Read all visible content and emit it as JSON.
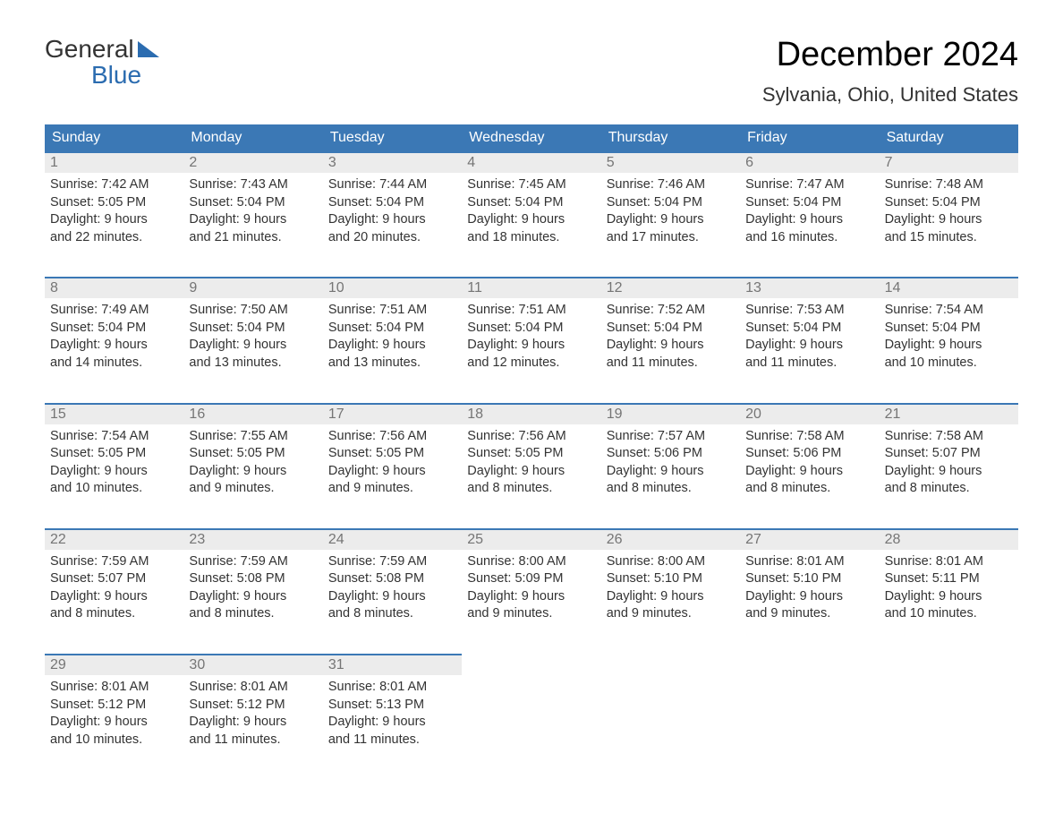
{
  "logo": {
    "line1": "General",
    "line2": "Blue"
  },
  "title": "December 2024",
  "location": "Sylvania, Ohio, United States",
  "colors": {
    "header_bg": "#3b78b5",
    "header_fg": "#ffffff",
    "cell_border": "#3b78b5",
    "daynum_bg": "#ececec",
    "daynum_fg": "#757575",
    "body_fg": "#333333",
    "logo_accent": "#2b6cb0",
    "page_bg": "#ffffff"
  },
  "typography": {
    "title_fontsize": 38,
    "location_fontsize": 22,
    "dow_fontsize": 16,
    "daynum_fontsize": 16,
    "body_fontsize": 14.5,
    "font_family": "Arial"
  },
  "calendar": {
    "type": "table",
    "dow": [
      "Sunday",
      "Monday",
      "Tuesday",
      "Wednesday",
      "Thursday",
      "Friday",
      "Saturday"
    ],
    "weeks": [
      [
        {
          "day": "1",
          "sunrise": "Sunrise: 7:42 AM",
          "sunset": "Sunset: 5:05 PM",
          "dl1": "Daylight: 9 hours",
          "dl2": "and 22 minutes."
        },
        {
          "day": "2",
          "sunrise": "Sunrise: 7:43 AM",
          "sunset": "Sunset: 5:04 PM",
          "dl1": "Daylight: 9 hours",
          "dl2": "and 21 minutes."
        },
        {
          "day": "3",
          "sunrise": "Sunrise: 7:44 AM",
          "sunset": "Sunset: 5:04 PM",
          "dl1": "Daylight: 9 hours",
          "dl2": "and 20 minutes."
        },
        {
          "day": "4",
          "sunrise": "Sunrise: 7:45 AM",
          "sunset": "Sunset: 5:04 PM",
          "dl1": "Daylight: 9 hours",
          "dl2": "and 18 minutes."
        },
        {
          "day": "5",
          "sunrise": "Sunrise: 7:46 AM",
          "sunset": "Sunset: 5:04 PM",
          "dl1": "Daylight: 9 hours",
          "dl2": "and 17 minutes."
        },
        {
          "day": "6",
          "sunrise": "Sunrise: 7:47 AM",
          "sunset": "Sunset: 5:04 PM",
          "dl1": "Daylight: 9 hours",
          "dl2": "and 16 minutes."
        },
        {
          "day": "7",
          "sunrise": "Sunrise: 7:48 AM",
          "sunset": "Sunset: 5:04 PM",
          "dl1": "Daylight: 9 hours",
          "dl2": "and 15 minutes."
        }
      ],
      [
        {
          "day": "8",
          "sunrise": "Sunrise: 7:49 AM",
          "sunset": "Sunset: 5:04 PM",
          "dl1": "Daylight: 9 hours",
          "dl2": "and 14 minutes."
        },
        {
          "day": "9",
          "sunrise": "Sunrise: 7:50 AM",
          "sunset": "Sunset: 5:04 PM",
          "dl1": "Daylight: 9 hours",
          "dl2": "and 13 minutes."
        },
        {
          "day": "10",
          "sunrise": "Sunrise: 7:51 AM",
          "sunset": "Sunset: 5:04 PM",
          "dl1": "Daylight: 9 hours",
          "dl2": "and 13 minutes."
        },
        {
          "day": "11",
          "sunrise": "Sunrise: 7:51 AM",
          "sunset": "Sunset: 5:04 PM",
          "dl1": "Daylight: 9 hours",
          "dl2": "and 12 minutes."
        },
        {
          "day": "12",
          "sunrise": "Sunrise: 7:52 AM",
          "sunset": "Sunset: 5:04 PM",
          "dl1": "Daylight: 9 hours",
          "dl2": "and 11 minutes."
        },
        {
          "day": "13",
          "sunrise": "Sunrise: 7:53 AM",
          "sunset": "Sunset: 5:04 PM",
          "dl1": "Daylight: 9 hours",
          "dl2": "and 11 minutes."
        },
        {
          "day": "14",
          "sunrise": "Sunrise: 7:54 AM",
          "sunset": "Sunset: 5:04 PM",
          "dl1": "Daylight: 9 hours",
          "dl2": "and 10 minutes."
        }
      ],
      [
        {
          "day": "15",
          "sunrise": "Sunrise: 7:54 AM",
          "sunset": "Sunset: 5:05 PM",
          "dl1": "Daylight: 9 hours",
          "dl2": "and 10 minutes."
        },
        {
          "day": "16",
          "sunrise": "Sunrise: 7:55 AM",
          "sunset": "Sunset: 5:05 PM",
          "dl1": "Daylight: 9 hours",
          "dl2": "and 9 minutes."
        },
        {
          "day": "17",
          "sunrise": "Sunrise: 7:56 AM",
          "sunset": "Sunset: 5:05 PM",
          "dl1": "Daylight: 9 hours",
          "dl2": "and 9 minutes."
        },
        {
          "day": "18",
          "sunrise": "Sunrise: 7:56 AM",
          "sunset": "Sunset: 5:05 PM",
          "dl1": "Daylight: 9 hours",
          "dl2": "and 8 minutes."
        },
        {
          "day": "19",
          "sunrise": "Sunrise: 7:57 AM",
          "sunset": "Sunset: 5:06 PM",
          "dl1": "Daylight: 9 hours",
          "dl2": "and 8 minutes."
        },
        {
          "day": "20",
          "sunrise": "Sunrise: 7:58 AM",
          "sunset": "Sunset: 5:06 PM",
          "dl1": "Daylight: 9 hours",
          "dl2": "and 8 minutes."
        },
        {
          "day": "21",
          "sunrise": "Sunrise: 7:58 AM",
          "sunset": "Sunset: 5:07 PM",
          "dl1": "Daylight: 9 hours",
          "dl2": "and 8 minutes."
        }
      ],
      [
        {
          "day": "22",
          "sunrise": "Sunrise: 7:59 AM",
          "sunset": "Sunset: 5:07 PM",
          "dl1": "Daylight: 9 hours",
          "dl2": "and 8 minutes."
        },
        {
          "day": "23",
          "sunrise": "Sunrise: 7:59 AM",
          "sunset": "Sunset: 5:08 PM",
          "dl1": "Daylight: 9 hours",
          "dl2": "and 8 minutes."
        },
        {
          "day": "24",
          "sunrise": "Sunrise: 7:59 AM",
          "sunset": "Sunset: 5:08 PM",
          "dl1": "Daylight: 9 hours",
          "dl2": "and 8 minutes."
        },
        {
          "day": "25",
          "sunrise": "Sunrise: 8:00 AM",
          "sunset": "Sunset: 5:09 PM",
          "dl1": "Daylight: 9 hours",
          "dl2": "and 9 minutes."
        },
        {
          "day": "26",
          "sunrise": "Sunrise: 8:00 AM",
          "sunset": "Sunset: 5:10 PM",
          "dl1": "Daylight: 9 hours",
          "dl2": "and 9 minutes."
        },
        {
          "day": "27",
          "sunrise": "Sunrise: 8:01 AM",
          "sunset": "Sunset: 5:10 PM",
          "dl1": "Daylight: 9 hours",
          "dl2": "and 9 minutes."
        },
        {
          "day": "28",
          "sunrise": "Sunrise: 8:01 AM",
          "sunset": "Sunset: 5:11 PM",
          "dl1": "Daylight: 9 hours",
          "dl2": "and 10 minutes."
        }
      ],
      [
        {
          "day": "29",
          "sunrise": "Sunrise: 8:01 AM",
          "sunset": "Sunset: 5:12 PM",
          "dl1": "Daylight: 9 hours",
          "dl2": "and 10 minutes."
        },
        {
          "day": "30",
          "sunrise": "Sunrise: 8:01 AM",
          "sunset": "Sunset: 5:12 PM",
          "dl1": "Daylight: 9 hours",
          "dl2": "and 11 minutes."
        },
        {
          "day": "31",
          "sunrise": "Sunrise: 8:01 AM",
          "sunset": "Sunset: 5:13 PM",
          "dl1": "Daylight: 9 hours",
          "dl2": "and 11 minutes."
        },
        null,
        null,
        null,
        null
      ]
    ]
  }
}
